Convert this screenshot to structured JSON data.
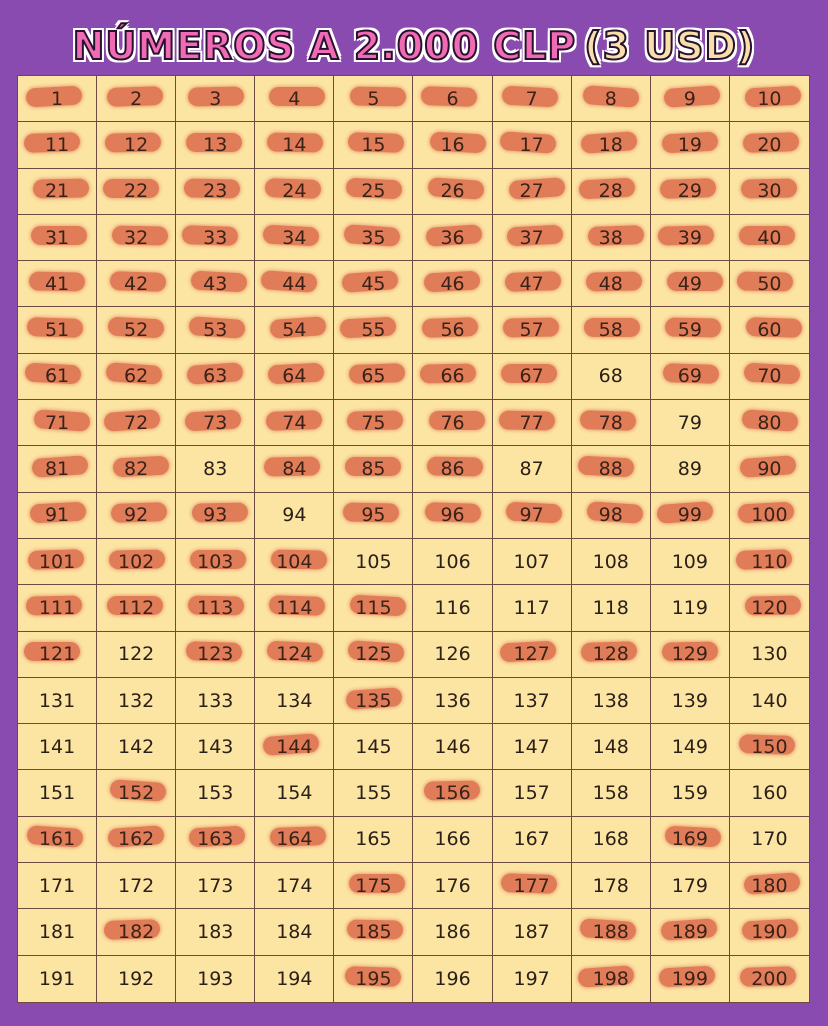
{
  "header": {
    "title": "NÚMEROS A 2.000 CLP",
    "subtitle": "(3 USD)"
  },
  "colors": {
    "background": "#8a4bb0",
    "cell": "#fce4a3",
    "grid_line": "#6b4a40",
    "strike_mark": "#d6543c",
    "title_fill": "#f06ab4"
  },
  "grid": {
    "columns": 10,
    "rows": 20,
    "numbers": [
      1,
      2,
      3,
      4,
      5,
      6,
      7,
      8,
      9,
      10,
      11,
      12,
      13,
      14,
      15,
      16,
      17,
      18,
      19,
      20,
      21,
      22,
      23,
      24,
      25,
      26,
      27,
      28,
      29,
      30,
      31,
      32,
      33,
      34,
      35,
      36,
      37,
      38,
      39,
      40,
      41,
      42,
      43,
      44,
      45,
      46,
      47,
      48,
      49,
      50,
      51,
      52,
      53,
      54,
      55,
      56,
      57,
      58,
      59,
      60,
      61,
      62,
      63,
      64,
      65,
      66,
      67,
      68,
      69,
      70,
      71,
      72,
      73,
      74,
      75,
      76,
      77,
      78,
      79,
      80,
      81,
      82,
      83,
      84,
      85,
      86,
      87,
      88,
      89,
      90,
      91,
      92,
      93,
      94,
      95,
      96,
      97,
      98,
      99,
      100,
      101,
      102,
      103,
      104,
      105,
      106,
      107,
      108,
      109,
      110,
      111,
      112,
      113,
      114,
      115,
      116,
      117,
      118,
      119,
      120,
      121,
      122,
      123,
      124,
      125,
      126,
      127,
      128,
      129,
      130,
      131,
      132,
      133,
      134,
      135,
      136,
      137,
      138,
      139,
      140,
      141,
      142,
      143,
      144,
      145,
      146,
      147,
      148,
      149,
      150,
      151,
      152,
      153,
      154,
      155,
      156,
      157,
      158,
      159,
      160,
      161,
      162,
      163,
      164,
      165,
      166,
      167,
      168,
      169,
      170,
      171,
      172,
      173,
      174,
      175,
      176,
      177,
      178,
      179,
      180,
      181,
      182,
      183,
      184,
      185,
      186,
      187,
      188,
      189,
      190,
      191,
      192,
      193,
      194,
      195,
      196,
      197,
      198,
      199,
      200
    ],
    "taken": [
      1,
      2,
      3,
      4,
      5,
      6,
      7,
      8,
      9,
      10,
      11,
      12,
      13,
      14,
      15,
      16,
      17,
      18,
      19,
      20,
      21,
      22,
      23,
      24,
      25,
      26,
      27,
      28,
      29,
      30,
      31,
      32,
      33,
      34,
      35,
      36,
      37,
      38,
      39,
      40,
      41,
      42,
      43,
      44,
      45,
      46,
      47,
      48,
      49,
      50,
      51,
      52,
      53,
      54,
      55,
      56,
      57,
      58,
      59,
      60,
      61,
      62,
      63,
      64,
      65,
      66,
      67,
      69,
      70,
      71,
      72,
      73,
      74,
      75,
      76,
      77,
      78,
      80,
      81,
      82,
      84,
      85,
      86,
      88,
      90,
      91,
      92,
      93,
      95,
      96,
      97,
      98,
      99,
      100,
      101,
      102,
      103,
      104,
      110,
      111,
      112,
      113,
      114,
      115,
      120,
      121,
      123,
      124,
      125,
      127,
      128,
      129,
      135,
      144,
      150,
      152,
      156,
      161,
      162,
      163,
      164,
      169,
      175,
      177,
      180,
      182,
      185,
      188,
      189,
      190,
      195,
      198,
      199,
      200
    ]
  }
}
